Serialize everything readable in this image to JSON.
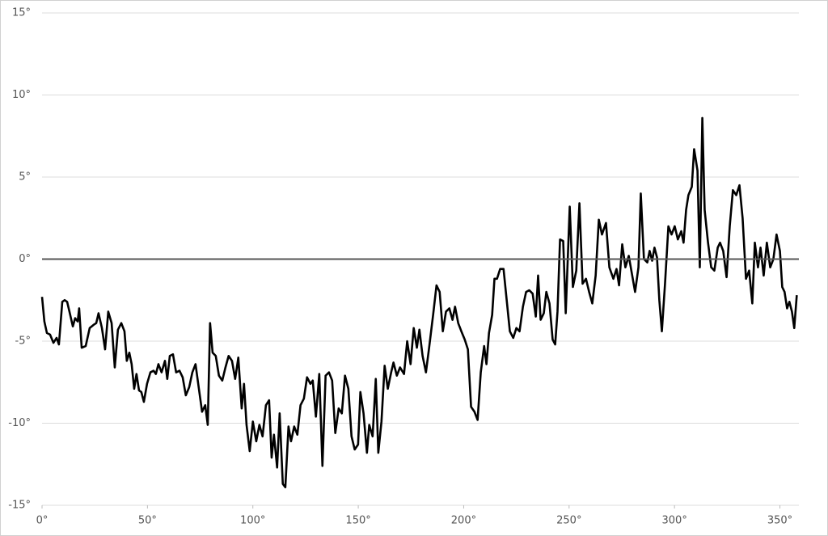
{
  "chart_data": {
    "type": "line",
    "x": [
      0,
      1.1,
      2.3,
      3.8,
      5.4,
      6.9,
      8.0,
      9.6,
      10.7,
      11.9,
      13.0,
      14.6,
      15.7,
      16.9,
      17.6,
      18.8,
      20.7,
      22.6,
      24.5,
      25.7,
      26.8,
      28.4,
      29.9,
      31.4,
      33.0,
      34.5,
      36.0,
      37.6,
      39.1,
      40.2,
      41.4,
      42.5,
      43.7,
      44.8,
      46.0,
      47.1,
      48.3,
      49.8,
      51.4,
      52.9,
      54.0,
      55.2,
      56.7,
      58.3,
      59.4,
      60.6,
      62.1,
      63.6,
      65.2,
      66.7,
      68.2,
      69.8,
      71.3,
      72.8,
      74.4,
      75.9,
      77.4,
      78.6,
      79.7,
      80.9,
      82.4,
      83.9,
      85.5,
      87.0,
      88.5,
      90.1,
      91.6,
      93.1,
      94.7,
      95.8,
      97.0,
      98.5,
      100.0,
      101.6,
      103.1,
      104.6,
      106.2,
      107.7,
      108.9,
      110.0,
      111.5,
      112.7,
      114.2,
      115.4,
      116.9,
      118.1,
      119.6,
      121.1,
      122.6,
      124.2,
      125.7,
      127.3,
      128.4,
      129.9,
      131.5,
      133.0,
      134.5,
      136.1,
      137.6,
      139.1,
      140.7,
      142.2,
      143.7,
      145.3,
      146.8,
      148.3,
      149.9,
      151.0,
      152.5,
      154.1,
      155.2,
      156.8,
      158.3,
      159.5,
      161.0,
      162.5,
      164.0,
      165.6,
      166.7,
      168.3,
      169.8,
      171.7,
      173.2,
      174.8,
      176.3,
      177.8,
      179.0,
      180.5,
      182.1,
      183.6,
      185.5,
      187.1,
      188.6,
      190.1,
      191.6,
      193.2,
      194.7,
      195.9,
      197.4,
      198.9,
      200.5,
      202.0,
      203.5,
      205.1,
      206.6,
      208.1,
      209.7,
      210.8,
      212.0,
      213.5,
      214.6,
      215.8,
      217.3,
      218.9,
      220.4,
      221.9,
      223.5,
      225.0,
      226.5,
      228.1,
      229.6,
      231.1,
      232.7,
      234.2,
      235.3,
      236.5,
      238.0,
      239.2,
      240.7,
      242.2,
      243.4,
      244.5,
      245.7,
      247.2,
      248.4,
      250.3,
      251.8,
      253.4,
      254.9,
      256.4,
      258.0,
      259.5,
      261.0,
      262.6,
      264.1,
      265.6,
      267.5,
      269.1,
      271.0,
      272.5,
      273.7,
      275.2,
      276.7,
      278.3,
      279.8,
      281.3,
      282.9,
      284.0,
      285.5,
      287.1,
      288.2,
      289.4,
      290.5,
      291.7,
      292.8,
      294.0,
      295.5,
      297.1,
      298.6,
      300.1,
      301.6,
      303.2,
      304.3,
      305.5,
      306.6,
      308.2,
      309.3,
      310.9,
      312.0,
      313.2,
      314.3,
      315.9,
      317.4,
      318.9,
      320.5,
      321.6,
      323.1,
      324.7,
      326.2,
      327.7,
      329.3,
      330.8,
      332.3,
      333.9,
      335.4,
      336.9,
      338.1,
      339.6,
      340.8,
      342.3,
      343.8,
      345.4,
      346.9,
      348.4,
      350.0,
      351.1,
      352.2,
      353.4,
      354.5,
      355.7,
      356.8,
      358.0
    ],
    "series": [
      {
        "color": "#000000",
        "values": [
          -2.3,
          -3.8,
          -4.5,
          -4.6,
          -5.1,
          -4.8,
          -5.2,
          -2.6,
          -2.5,
          -2.6,
          -3.2,
          -4.1,
          -3.6,
          -3.8,
          -3.0,
          -5.4,
          -5.3,
          -4.2,
          -4.0,
          -3.9,
          -3.3,
          -4.2,
          -5.5,
          -3.2,
          -3.9,
          -6.6,
          -4.3,
          -3.9,
          -4.4,
          -6.2,
          -5.7,
          -6.4,
          -7.9,
          -7.0,
          -8.0,
          -8.1,
          -8.7,
          -7.6,
          -6.9,
          -6.8,
          -7.0,
          -6.4,
          -6.9,
          -6.2,
          -7.3,
          -5.9,
          -5.8,
          -6.9,
          -6.8,
          -7.2,
          -8.3,
          -7.8,
          -6.9,
          -6.4,
          -7.9,
          -9.3,
          -8.9,
          -10.1,
          -3.9,
          -5.7,
          -5.9,
          -7.1,
          -7.4,
          -6.6,
          -5.9,
          -6.2,
          -7.3,
          -6.0,
          -9.1,
          -7.6,
          -10.1,
          -11.7,
          -9.9,
          -11.1,
          -10.1,
          -10.8,
          -8.9,
          -8.6,
          -12.1,
          -10.7,
          -12.7,
          -9.4,
          -13.7,
          -13.9,
          -10.2,
          -11.1,
          -10.2,
          -10.7,
          -8.9,
          -8.5,
          -7.2,
          -7.6,
          -7.4,
          -9.6,
          -7.0,
          -12.6,
          -7.1,
          -6.9,
          -7.4,
          -10.6,
          -9.1,
          -9.4,
          -7.1,
          -7.9,
          -10.8,
          -11.6,
          -11.3,
          -8.1,
          -9.4,
          -11.8,
          -10.1,
          -10.8,
          -7.3,
          -11.8,
          -9.9,
          -6.5,
          -7.9,
          -6.9,
          -6.3,
          -7.1,
          -6.6,
          -7.0,
          -5.0,
          -6.4,
          -4.2,
          -5.4,
          -4.3,
          -5.9,
          -6.9,
          -5.4,
          -3.4,
          -1.6,
          -2.0,
          -4.4,
          -3.2,
          -3.0,
          -3.7,
          -2.9,
          -3.9,
          -4.4,
          -4.9,
          -5.5,
          -9.0,
          -9.3,
          -9.8,
          -6.9,
          -5.3,
          -6.4,
          -4.5,
          -3.4,
          -1.2,
          -1.2,
          -0.6,
          -0.6,
          -2.5,
          -4.4,
          -4.8,
          -4.2,
          -4.4,
          -2.9,
          -2.0,
          -1.9,
          -2.1,
          -3.5,
          -1.0,
          -3.7,
          -3.3,
          -2.0,
          -2.7,
          -4.9,
          -5.2,
          -3.2,
          1.2,
          1.1,
          -3.3,
          3.2,
          -1.7,
          -0.7,
          3.4,
          -1.5,
          -1.2,
          -2.0,
          -2.7,
          -1.0,
          2.4,
          1.5,
          2.2,
          -0.5,
          -1.2,
          -0.6,
          -1.6,
          0.9,
          -0.5,
          0.2,
          -0.9,
          -2.0,
          -0.5,
          4.0,
          0.0,
          -0.2,
          0.5,
          -0.1,
          0.7,
          0.1,
          -2.5,
          -4.4,
          -1.5,
          2.0,
          1.5,
          2.0,
          1.2,
          1.7,
          1.0,
          3.0,
          3.9,
          4.4,
          6.7,
          5.4,
          -0.5,
          8.6,
          3.0,
          1.0,
          -0.5,
          -0.7,
          0.7,
          1.0,
          0.5,
          -1.1,
          2.0,
          4.2,
          3.9,
          4.5,
          2.5,
          -1.2,
          -0.7,
          -2.7,
          1.0,
          -0.5,
          0.7,
          -1.0,
          1.0,
          -0.5,
          0.0,
          1.5,
          0.5,
          -1.7,
          -2.0,
          -3.0,
          -2.6,
          -3.2,
          -4.2,
          -2.2
        ]
      }
    ],
    "xlim": [
      0,
      359
    ],
    "ylim": [
      -15,
      15
    ],
    "xticks": [
      {
        "value": 0,
        "label": "0°"
      },
      {
        "value": 50,
        "label": "50°"
      },
      {
        "value": 100,
        "label": "100°"
      },
      {
        "value": 150,
        "label": "150°"
      },
      {
        "value": 200,
        "label": "200°"
      },
      {
        "value": 250,
        "label": "250°"
      },
      {
        "value": 300,
        "label": "300°"
      },
      {
        "value": 350,
        "label": "350°"
      }
    ],
    "yticks": [
      {
        "value": -15,
        "label": "-15°"
      },
      {
        "value": -10,
        "label": "-10°"
      },
      {
        "value": -5,
        "label": "-5°"
      },
      {
        "value": 0,
        "label": "0°"
      },
      {
        "value": 5,
        "label": "5°"
      },
      {
        "value": 10,
        "label": "10°"
      },
      {
        "value": 15,
        "label": "15°"
      }
    ],
    "grid": true
  }
}
